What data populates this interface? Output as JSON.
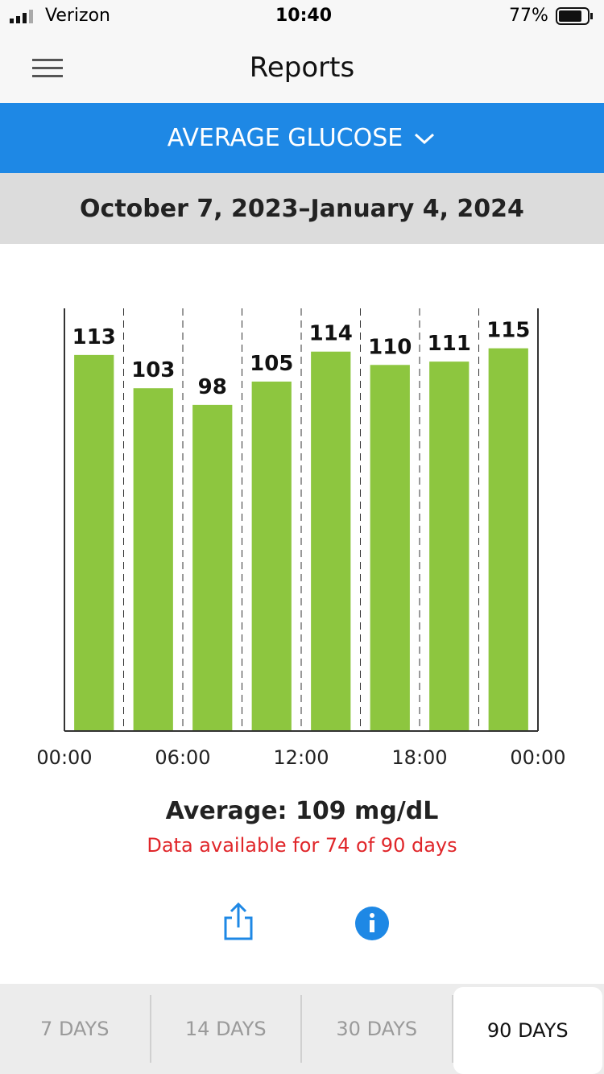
{
  "status_bar": {
    "carrier": "Verizon",
    "time": "10:40",
    "battery": "77%"
  },
  "header": {
    "title": "Reports"
  },
  "report_selector": {
    "label": "AVERAGE GLUCOSE"
  },
  "date_range": "October 7, 2023–January 4, 2024",
  "chart_data": {
    "type": "histogram",
    "color": "#8dc63f",
    "bins": [
      0,
      3,
      6,
      9,
      12,
      15,
      18,
      21,
      24
    ],
    "values": [
      113,
      103,
      98,
      105,
      114,
      110,
      111,
      115
    ],
    "xlim": [
      0,
      24
    ],
    "xticks": [
      {
        "value": 0,
        "label": "00:00"
      },
      {
        "value": 6,
        "label": "06:00"
      },
      {
        "value": 12,
        "label": "12:00"
      },
      {
        "value": 18,
        "label": "18:00"
      },
      {
        "value": 24,
        "label": "00:00"
      }
    ],
    "ylim": [
      0,
      127
    ],
    "grid": true
  },
  "summary": {
    "average": "Average: 109 mg/dL",
    "availability": "Data available for 74 of 90 days"
  },
  "tabs": {
    "items": [
      "7 DAYS",
      "14 DAYS",
      "30 DAYS",
      "90 DAYS"
    ],
    "selected": 3
  }
}
